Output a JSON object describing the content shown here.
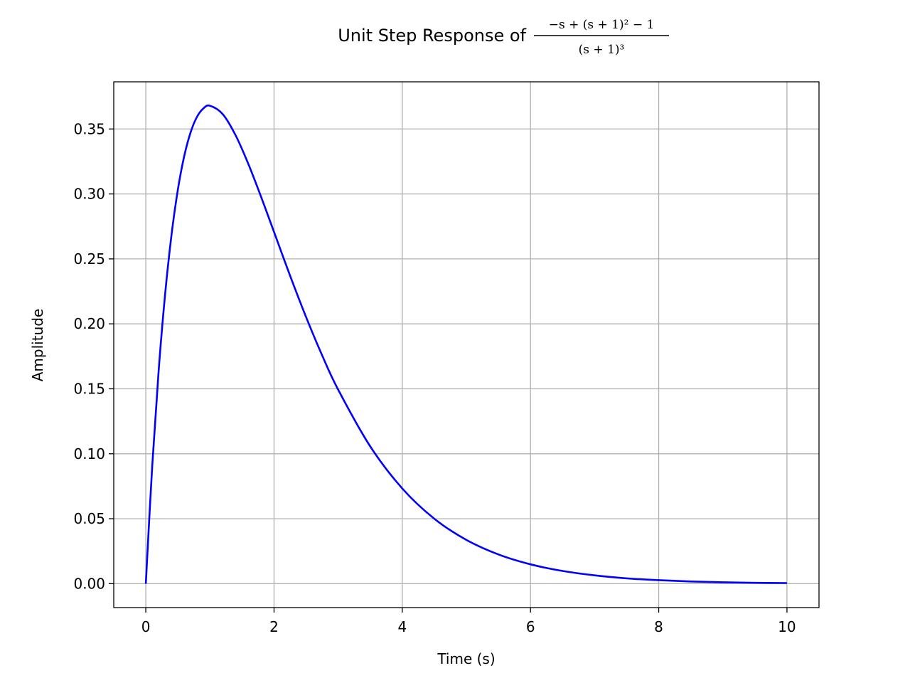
{
  "chart_data": {
    "type": "line",
    "title": {
      "prefix": "Unit Step Response of ",
      "numerator": "−s + (s + 1)² − 1",
      "denominator": "(s + 1)³"
    },
    "xlabel": "Time (s)",
    "ylabel": "Amplitude",
    "xlim": [
      -0.5,
      10.5
    ],
    "ylim": [
      -0.0184,
      0.3863
    ],
    "xticks": [
      0,
      2,
      4,
      6,
      8,
      10
    ],
    "xtick_labels": [
      "0",
      "2",
      "4",
      "6",
      "8",
      "10"
    ],
    "yticks": [
      0,
      0.05,
      0.1,
      0.15,
      0.2,
      0.25,
      0.3,
      0.35
    ],
    "ytick_labels": [
      "0.00",
      "0.05",
      "0.10",
      "0.15",
      "0.20",
      "0.25",
      "0.30",
      "0.35"
    ],
    "grid": true,
    "series": [
      {
        "color": "#0000ff",
        "x": [
          0,
          0.1,
          0.2,
          0.3,
          0.4,
          0.5,
          0.6,
          0.7,
          0.8,
          0.9,
          1.0,
          1.2,
          1.4,
          1.6,
          1.8,
          2.0,
          2.25,
          2.5,
          2.75,
          3.0,
          3.5,
          4.0,
          4.5,
          5.0,
          5.5,
          6.0,
          6.5,
          7.0,
          7.5,
          8.0,
          8.5,
          9.0,
          9.5,
          10.0
        ],
        "y": [
          0,
          0.0905,
          0.1637,
          0.2222,
          0.2681,
          0.3033,
          0.3293,
          0.3476,
          0.3595,
          0.3659,
          0.3679,
          0.3614,
          0.3452,
          0.323,
          0.2975,
          0.2707,
          0.2371,
          0.2052,
          0.1758,
          0.1494,
          0.1057,
          0.0733,
          0.05,
          0.0337,
          0.0225,
          0.0149,
          0.0098,
          0.0064,
          0.0041,
          0.0027,
          0.0017,
          0.0011,
          0.0007,
          0.0005
        ]
      }
    ]
  }
}
